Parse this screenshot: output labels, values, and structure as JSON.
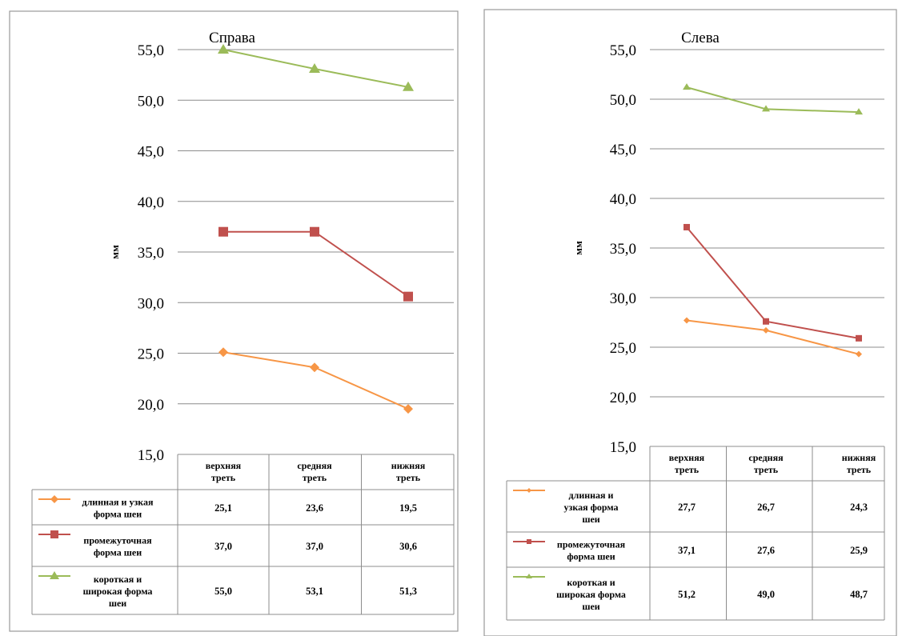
{
  "chart_data": [
    {
      "type": "line",
      "title": "Справа",
      "ylabel": "мм",
      "ylim": [
        15.0,
        55.0
      ],
      "yticks": [
        "15,0",
        "20,0",
        "25,0",
        "30,0",
        "35,0",
        "40,0",
        "45,0",
        "50,0",
        "55,0"
      ],
      "categories": [
        [
          "верхняя",
          "треть"
        ],
        [
          "средняя",
          "треть"
        ],
        [
          "нижняя",
          "треть"
        ]
      ],
      "grid": true,
      "legend": "table-below",
      "series": [
        {
          "name": [
            "длинная и узкая",
            "форма шеи"
          ],
          "color": "#f79646",
          "marker": "diamond",
          "values": [
            25.1,
            23.6,
            19.5
          ],
          "labels": [
            "25,1",
            "23,6",
            "19,5"
          ]
        },
        {
          "name": [
            "промежуточная",
            "форма шеи"
          ],
          "color": "#c0504d",
          "marker": "square",
          "values": [
            37.0,
            37.0,
            30.6
          ],
          "labels": [
            "37,0",
            "37,0",
            "30,6"
          ]
        },
        {
          "name": [
            "короткая и",
            "широкая форма",
            "шеи"
          ],
          "color": "#9bbb59",
          "marker": "triangle",
          "values": [
            55.0,
            53.1,
            51.3
          ],
          "labels": [
            "55,0",
            "53,1",
            "51,3"
          ]
        }
      ]
    },
    {
      "type": "line",
      "title": "Слева",
      "ylabel": "мм",
      "ylim": [
        15.0,
        55.0
      ],
      "yticks": [
        "15,0",
        "20,0",
        "25,0",
        "30,0",
        "35,0",
        "40,0",
        "45,0",
        "50,0",
        "55,0"
      ],
      "categories": [
        [
          "верхняя",
          "треть"
        ],
        [
          "средняя",
          "треть"
        ],
        [
          "нижняя",
          "треть"
        ]
      ],
      "grid": true,
      "legend": "table-below",
      "series": [
        {
          "name": [
            "длинная и",
            "узкая форма",
            "шеи"
          ],
          "color": "#f79646",
          "marker": "diamond",
          "values": [
            27.7,
            26.7,
            24.3
          ],
          "labels": [
            "27,7",
            "26,7",
            "24,3"
          ]
        },
        {
          "name": [
            "промежуточная",
            "форма шеи"
          ],
          "color": "#c0504d",
          "marker": "square",
          "values": [
            37.1,
            27.6,
            25.9
          ],
          "labels": [
            "37,1",
            "27,6",
            "25,9"
          ]
        },
        {
          "name": [
            "короткая и",
            "широкая форма",
            "шеи"
          ],
          "color": "#9bbb59",
          "marker": "triangle",
          "values": [
            51.2,
            49.0,
            48.7
          ],
          "labels": [
            "51,2",
            "49,0",
            "48,7"
          ]
        }
      ]
    }
  ]
}
